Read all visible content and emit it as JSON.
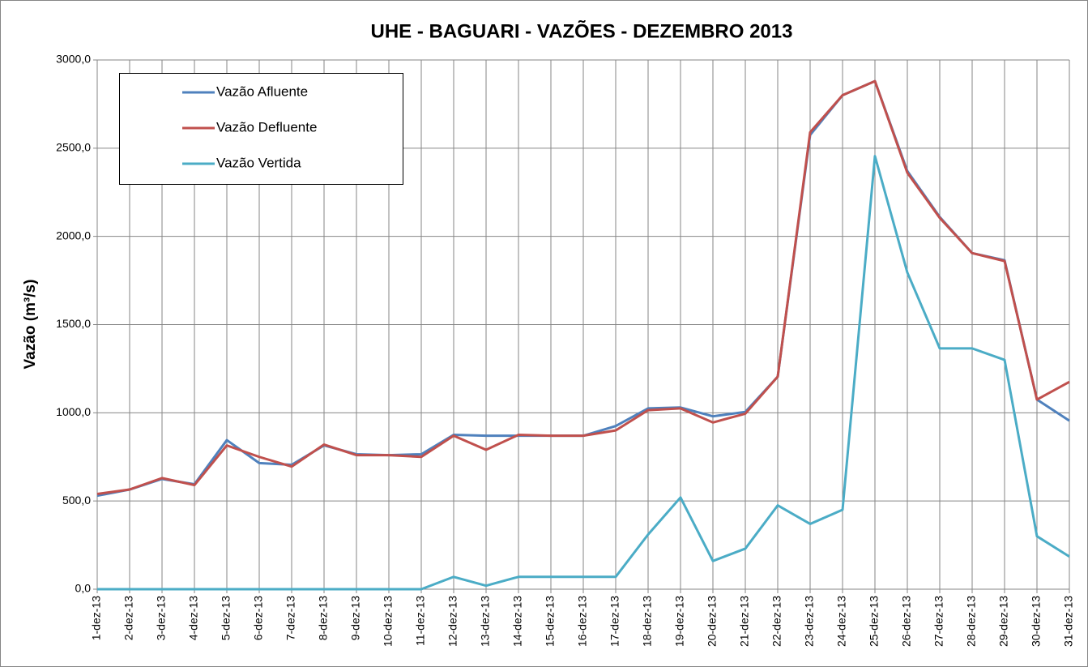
{
  "chart_data": {
    "type": "line",
    "title": "UHE - BAGUARI - VAZÕES - DEZEMBRO 2013",
    "y_label": "Vazão (m³/s)",
    "categories": [
      "1-dez-13",
      "2-dez-13",
      "3-dez-13",
      "4-dez-13",
      "5-dez-13",
      "6-dez-13",
      "7-dez-13",
      "8-dez-13",
      "9-dez-13",
      "10-dez-13",
      "11-dez-13",
      "12-dez-13",
      "13-dez-13",
      "14-dez-13",
      "15-dez-13",
      "16-dez-13",
      "17-dez-13",
      "18-dez-13",
      "19-dez-13",
      "20-dez-13",
      "21-dez-13",
      "22-dez-13",
      "23-dez-13",
      "24-dez-13",
      "25-dez-13",
      "26-dez-13",
      "27-dez-13",
      "28-dez-13",
      "29-dez-13",
      "30-dez-13",
      "31-dez-13"
    ],
    "series": [
      {
        "name": "Vazão Afluente",
        "color": "#4f81bd",
        "values": [
          530,
          565,
          625,
          595,
          845,
          715,
          705,
          815,
          765,
          760,
          765,
          875,
          870,
          870,
          870,
          870,
          925,
          1025,
          1030,
          980,
          1005,
          1205,
          2575,
          2800,
          2880,
          2370,
          2110,
          1905,
          1865,
          1075,
          955
        ]
      },
      {
        "name": "Vazão Defluente",
        "color": "#c0504d",
        "values": [
          540,
          565,
          630,
          590,
          815,
          750,
          695,
          820,
          760,
          760,
          750,
          870,
          790,
          875,
          870,
          870,
          900,
          1015,
          1025,
          945,
          995,
          1205,
          2590,
          2800,
          2880,
          2360,
          2105,
          1905,
          1860,
          1075,
          1175
        ]
      },
      {
        "name": "Vazão Vertida",
        "color": "#4bacc6",
        "values": [
          0,
          0,
          0,
          0,
          0,
          0,
          0,
          0,
          0,
          0,
          0,
          70,
          20,
          70,
          70,
          70,
          70,
          310,
          520,
          160,
          230,
          475,
          370,
          450,
          2455,
          1795,
          1365,
          1365,
          1300,
          300,
          185
        ]
      }
    ],
    "ylim": [
      0,
      3000
    ],
    "yticks": [
      {
        "value": 0,
        "label": "0,0"
      },
      {
        "value": 500,
        "label": "500,0"
      },
      {
        "value": 1000,
        "label": "1000,0"
      },
      {
        "value": 1500,
        "label": "1500,0"
      },
      {
        "value": 2000,
        "label": "2000,0"
      },
      {
        "value": 2500,
        "label": "2500,0"
      },
      {
        "value": 3000,
        "label": "3000,0"
      }
    ],
    "grid": true,
    "legend": "upper left"
  }
}
